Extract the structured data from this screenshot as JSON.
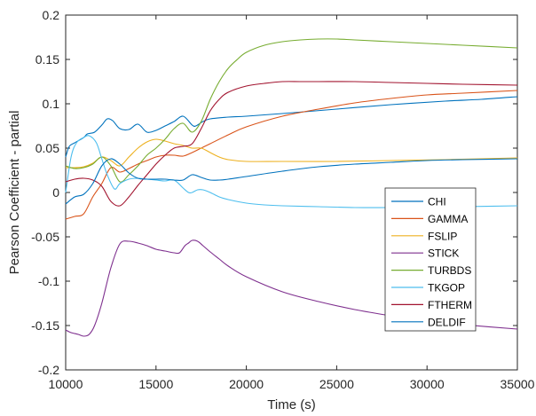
{
  "chart_data": {
    "type": "line",
    "title": "",
    "xlabel": "Time (s)",
    "ylabel": "Pearson Coefficient - partial",
    "xlim": [
      10000,
      35000
    ],
    "ylim": [
      -0.2,
      0.2
    ],
    "xticks": [
      10000,
      15000,
      20000,
      25000,
      30000,
      35000
    ],
    "xtick_labels": [
      "10000",
      "15000",
      "20000",
      "25000",
      "30000",
      "35000"
    ],
    "yticks": [
      -0.2,
      -0.15,
      -0.1,
      -0.05,
      0,
      0.05,
      0.1,
      0.15,
      0.2
    ],
    "ytick_labels": [
      "-0.2",
      "-0.15",
      "-0.1",
      "-0.05",
      "0",
      "0.05",
      "0.1",
      "0.15",
      "0.2"
    ],
    "grid": false,
    "legend_position": "bottom-right",
    "series": [
      {
        "name": "CHI",
        "color": "#0072BD",
        "x": [
          10000,
          10200,
          10500,
          11000,
          11200,
          11600,
          12000,
          12300,
          12600,
          13000,
          13500,
          14000,
          14500,
          15000,
          15500,
          16000,
          16500,
          17000,
          17200,
          17600,
          18000,
          19000,
          20000,
          22000,
          25000,
          28000,
          31000,
          33000,
          35000
        ],
        "y": [
          0.04,
          0.052,
          0.056,
          0.062,
          0.066,
          0.068,
          0.076,
          0.083,
          0.081,
          0.072,
          0.071,
          0.077,
          0.068,
          0.07,
          0.075,
          0.08,
          0.086,
          0.076,
          0.075,
          0.08,
          0.083,
          0.085,
          0.086,
          0.089,
          0.094,
          0.099,
          0.103,
          0.105,
          0.108
        ]
      },
      {
        "name": "GAMMA",
        "color": "#D95319",
        "x": [
          10000,
          10500,
          11000,
          11500,
          12000,
          12500,
          13000,
          13500,
          14000,
          14500,
          15000,
          15500,
          16000,
          16500,
          17000,
          17500,
          18000,
          19000,
          20000,
          22000,
          24000,
          26000,
          28000,
          30000,
          32000,
          35000
        ],
        "y": [
          -0.03,
          -0.027,
          -0.024,
          -0.005,
          0.01,
          0.028,
          0.023,
          0.027,
          0.032,
          0.036,
          0.04,
          0.042,
          0.042,
          0.041,
          0.045,
          0.05,
          0.055,
          0.065,
          0.074,
          0.086,
          0.094,
          0.101,
          0.106,
          0.11,
          0.112,
          0.115
        ]
      },
      {
        "name": "FSLIP",
        "color": "#EDB120",
        "x": [
          10000,
          10500,
          11000,
          11500,
          12000,
          12500,
          13000,
          13500,
          14000,
          14500,
          15000,
          15500,
          16000,
          16500,
          17000,
          17500,
          18000,
          18500,
          19000,
          20000,
          22000,
          25000,
          28000,
          31000,
          35000
        ],
        "y": [
          0.028,
          0.028,
          0.029,
          0.033,
          0.04,
          0.036,
          0.03,
          0.04,
          0.05,
          0.057,
          0.06,
          0.058,
          0.055,
          0.053,
          0.05,
          0.05,
          0.045,
          0.04,
          0.037,
          0.035,
          0.035,
          0.035,
          0.036,
          0.037,
          0.039
        ]
      },
      {
        "name": "STICK",
        "color": "#7E2F8E",
        "x": [
          10000,
          10300,
          10700,
          11000,
          11300,
          11600,
          12000,
          12500,
          13000,
          13500,
          14000,
          14500,
          15000,
          15500,
          16000,
          16300,
          16600,
          16800,
          17000,
          17300,
          17600,
          18000,
          18500,
          19000,
          20000,
          22000,
          24000,
          26000,
          28000,
          30000,
          32000,
          35000
        ],
        "y": [
          -0.155,
          -0.158,
          -0.16,
          -0.162,
          -0.16,
          -0.15,
          -0.125,
          -0.085,
          -0.058,
          -0.055,
          -0.057,
          -0.06,
          -0.064,
          -0.066,
          -0.068,
          -0.068,
          -0.06,
          -0.057,
          -0.054,
          -0.055,
          -0.06,
          -0.067,
          -0.075,
          -0.083,
          -0.095,
          -0.112,
          -0.123,
          -0.132,
          -0.139,
          -0.145,
          -0.149,
          -0.154
        ]
      },
      {
        "name": "TURBDS",
        "color": "#77AC30",
        "x": [
          10000,
          10500,
          11000,
          11500,
          12000,
          12500,
          13000,
          13500,
          14000,
          14500,
          15000,
          15500,
          16000,
          16500,
          17000,
          17500,
          18000,
          18500,
          19000,
          19500,
          20000,
          21000,
          22000,
          23000,
          24000,
          25000,
          26000,
          28000,
          30000,
          32000,
          35000
        ],
        "y": [
          0.03,
          0.027,
          0.028,
          0.032,
          0.04,
          0.03,
          0.012,
          0.02,
          0.03,
          0.042,
          0.05,
          0.06,
          0.072,
          0.078,
          0.068,
          0.08,
          0.105,
          0.125,
          0.14,
          0.15,
          0.158,
          0.166,
          0.17,
          0.172,
          0.173,
          0.173,
          0.172,
          0.17,
          0.168,
          0.166,
          0.163
        ]
      },
      {
        "name": "TKGOP",
        "color": "#4DBEEE",
        "x": [
          10000,
          10300,
          10600,
          11000,
          11300,
          11700,
          12000,
          12300,
          12700,
          13000,
          13500,
          14000,
          14500,
          15000,
          15500,
          16000,
          16500,
          16800,
          17000,
          17300,
          17600,
          18000,
          18500,
          19000,
          20000,
          21000,
          22000,
          24000,
          26000,
          28000,
          30000,
          32000,
          35000
        ],
        "y": [
          0.0,
          0.04,
          0.056,
          0.062,
          0.064,
          0.056,
          0.038,
          0.02,
          0.004,
          0.01,
          0.015,
          0.016,
          0.015,
          0.014,
          0.013,
          0.014,
          0.005,
          0.0,
          0.0,
          0.003,
          0.003,
          0.0,
          -0.005,
          -0.008,
          -0.012,
          -0.014,
          -0.015,
          -0.016,
          -0.017,
          -0.017,
          -0.017,
          -0.016,
          -0.015
        ]
      },
      {
        "name": "FTHERM",
        "color": "#A2142F",
        "x": [
          10000,
          10500,
          11000,
          11500,
          12000,
          12500,
          13000,
          13500,
          14000,
          14500,
          15000,
          15500,
          16000,
          16500,
          17000,
          17500,
          18000,
          18500,
          19000,
          20000,
          21000,
          22000,
          23000,
          24000,
          26000,
          28000,
          30000,
          32000,
          35000
        ],
        "y": [
          0.012,
          0.015,
          0.016,
          0.014,
          0.007,
          -0.01,
          -0.015,
          -0.005,
          0.008,
          0.02,
          0.032,
          0.042,
          0.05,
          0.052,
          0.055,
          0.072,
          0.092,
          0.105,
          0.113,
          0.12,
          0.123,
          0.125,
          0.125,
          0.125,
          0.125,
          0.124,
          0.123,
          0.122,
          0.121
        ]
      },
      {
        "name": "DELDIF",
        "color": "#0072BD",
        "x": [
          10000,
          10500,
          11000,
          11500,
          12000,
          12500,
          13000,
          13500,
          14000,
          14500,
          15000,
          15500,
          16000,
          16500,
          17000,
          17500,
          18000,
          18500,
          19000,
          20000,
          22000,
          24000,
          26000,
          28000,
          30000,
          32000,
          35000
        ],
        "y": [
          -0.013,
          -0.005,
          -0.002,
          0.01,
          0.03,
          0.038,
          0.032,
          0.022,
          0.016,
          0.015,
          0.015,
          0.015,
          0.014,
          0.014,
          0.02,
          0.017,
          0.014,
          0.014,
          0.015,
          0.018,
          0.024,
          0.029,
          0.032,
          0.034,
          0.036,
          0.037,
          0.038
        ]
      }
    ]
  }
}
